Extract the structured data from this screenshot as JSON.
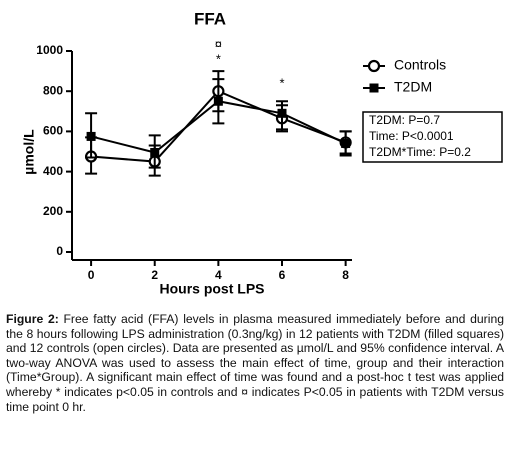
{
  "chart_data": {
    "type": "line",
    "title": "FFA",
    "y_label": "µmol/L",
    "x_label": "Hours post LPS",
    "x": [
      0,
      2,
      4,
      6,
      8
    ],
    "series": [
      {
        "name": "Controls",
        "color": "#000000",
        "marker": "open-circle",
        "values": [
          475,
          450,
          800,
          665,
          545
        ],
        "lower": [
          390,
          380,
          700,
          600,
          490
        ],
        "upper": [
          570,
          530,
          900,
          730,
          600
        ]
      },
      {
        "name": "T2DM",
        "color": "#000000",
        "marker": "filled-square",
        "values": [
          575,
          495,
          750,
          690,
          540
        ],
        "lower": [
          470,
          420,
          640,
          610,
          480
        ],
        "upper": [
          690,
          580,
          860,
          750,
          600
        ]
      }
    ],
    "xlim": [
      -0.6,
      8.2
    ],
    "xticks": [
      0,
      2,
      4,
      6,
      8
    ],
    "ylim": [
      0,
      1000
    ],
    "yticks": [
      0,
      200,
      400,
      600,
      800,
      1000
    ],
    "annotations": [
      "¤",
      "*",
      "*"
    ],
    "stats": [
      "T2DM: P=0.7",
      "Time: P<0.0001",
      "T2DM*Time: P=0.2"
    ]
  },
  "caption": {
    "label": "Figure 2:",
    "text": "Free fatty acid (FFA) levels in plasma measured immediately before and during the 8 hours following LPS administration (0.3ng/kg) in 12 patients with T2DM (filled squares) and 12 controls (open circles). Data are presented as µmol/L and 95% confidence interval. A two-way ANOVA was used to assess the main effect of time, group and their interaction (Time*Group). A significant main effect of time was found and a post-hoc t test was applied whereby * indicates p<0.05 in controls and ¤ indicates P<0.05 in patients with T2DM versus time point 0 hr."
  }
}
